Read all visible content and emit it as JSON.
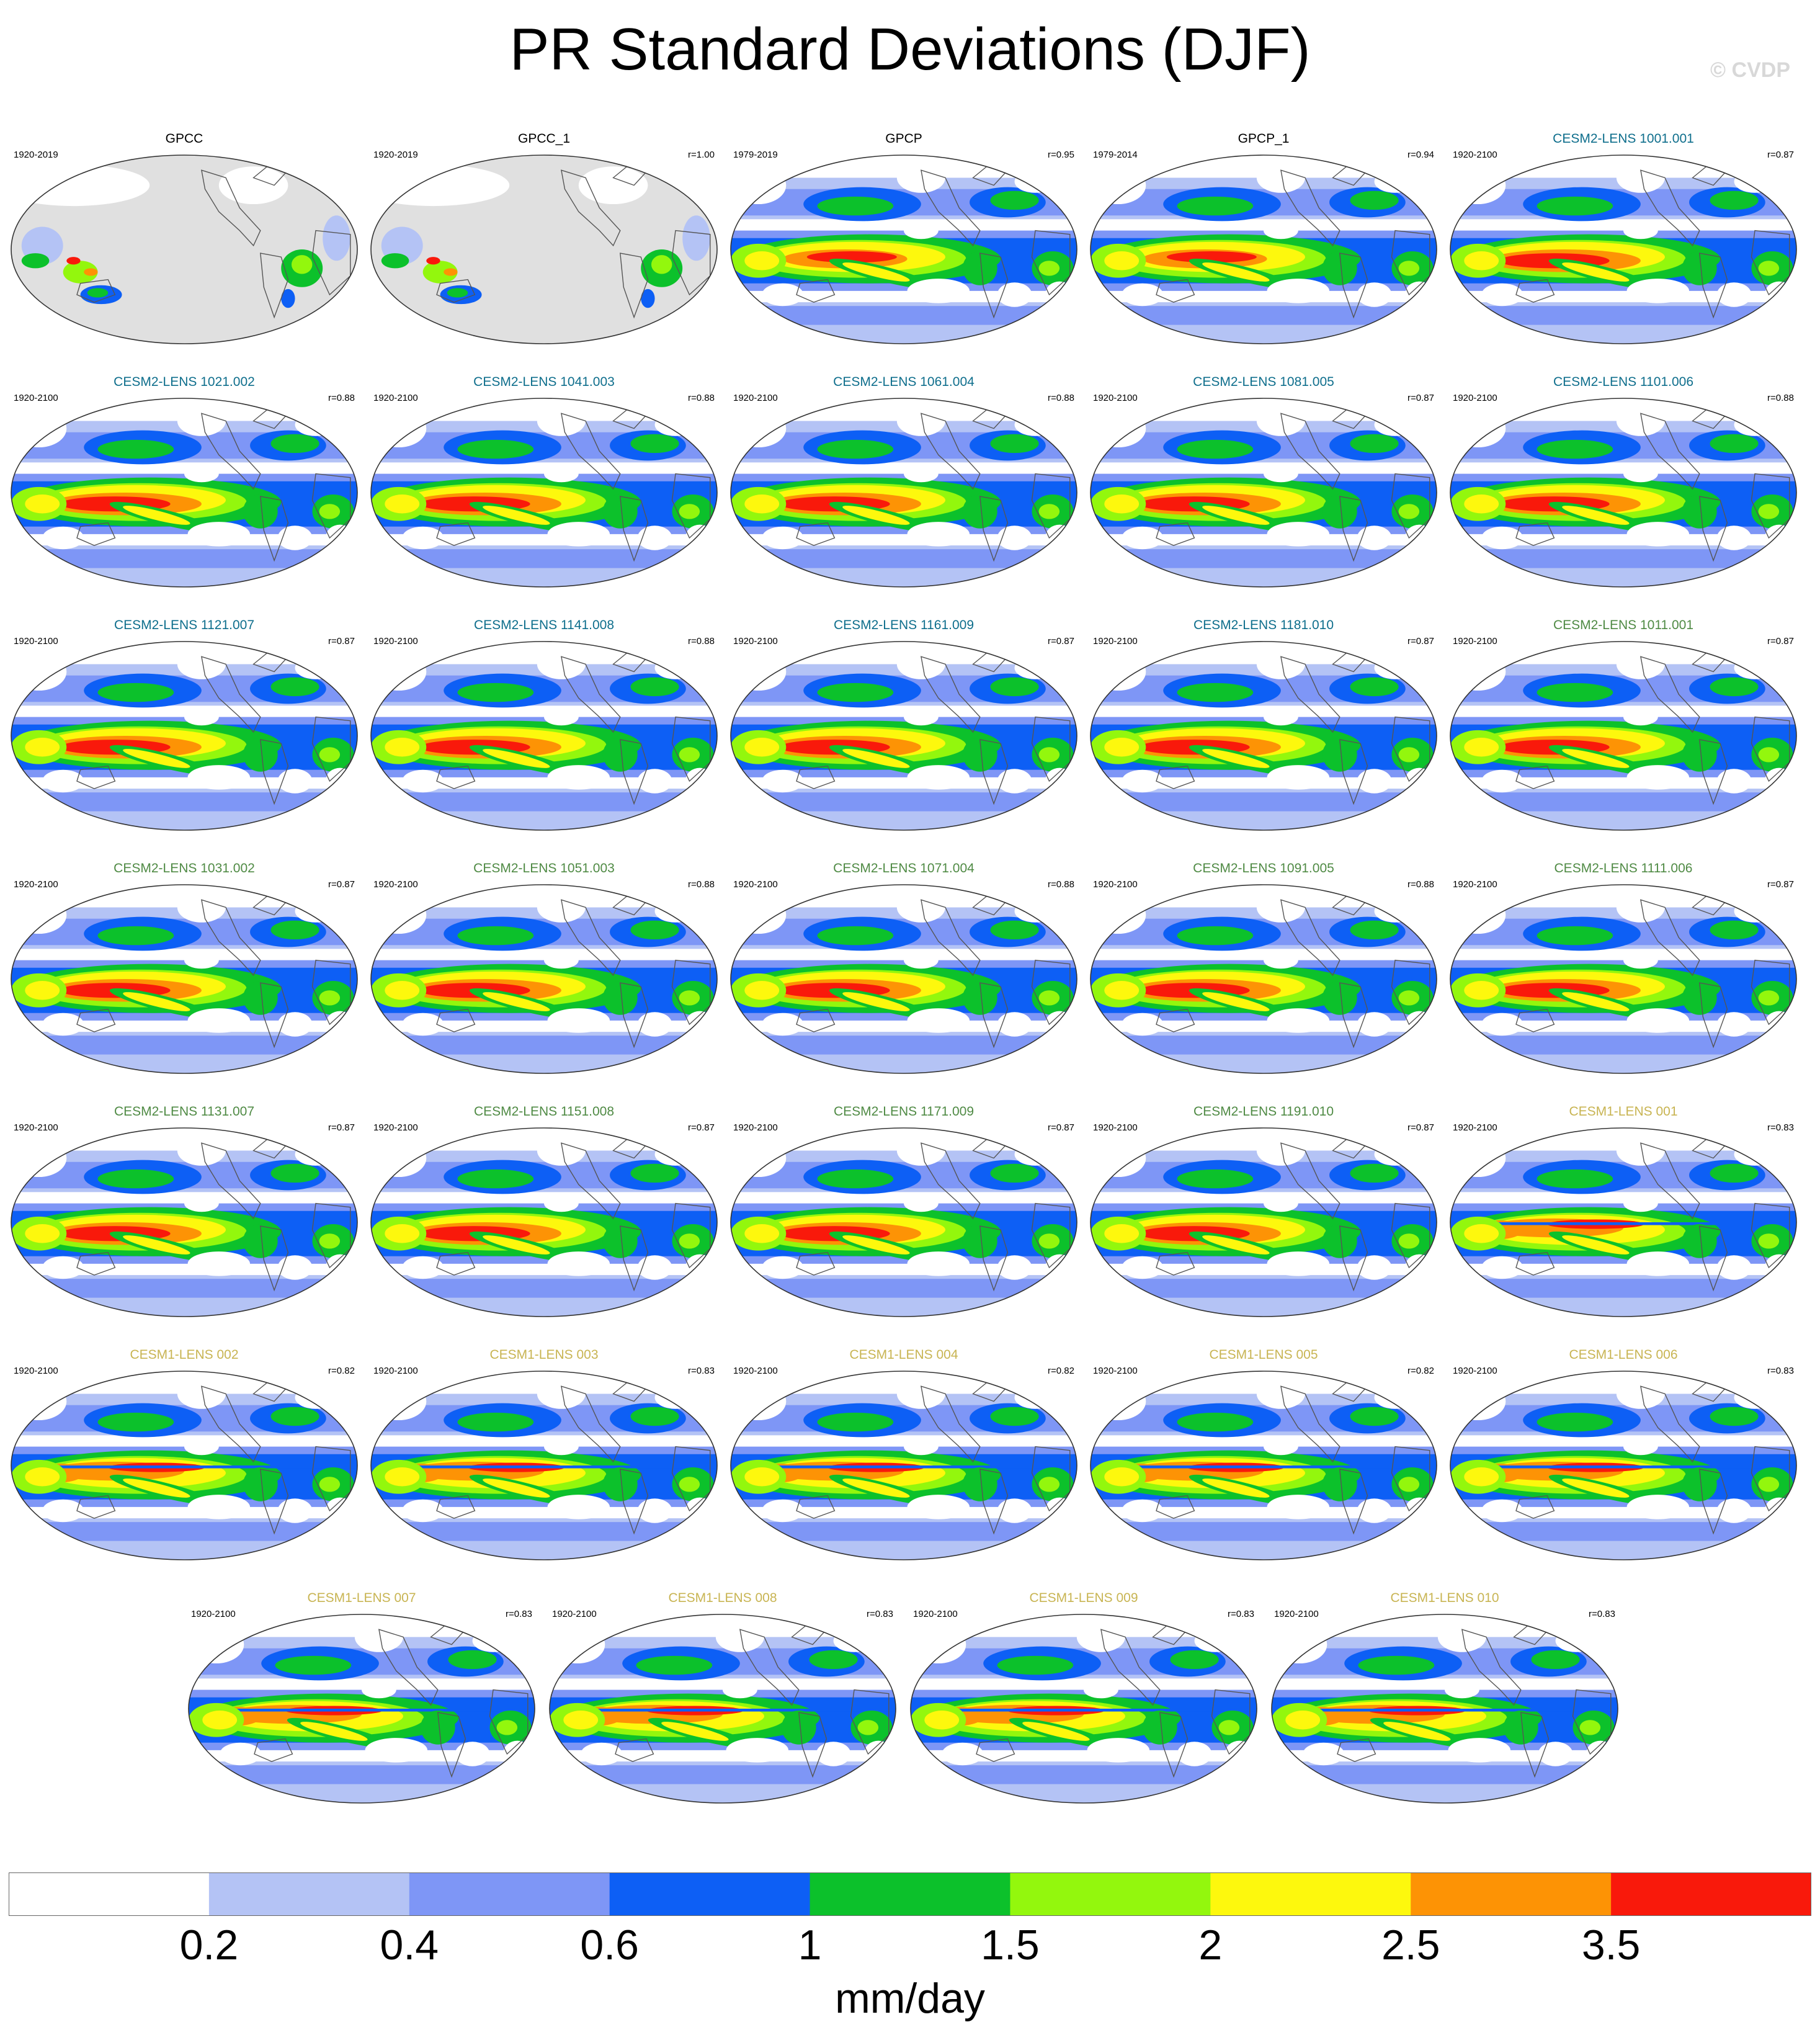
{
  "title": "PR Standard Deviations (DJF)",
  "watermark": "© CVDP",
  "colors": {
    "obs_title": "#000000",
    "cesm2_first": "#0e6e8c",
    "cesm2_second": "#4f8a44",
    "cesm1": "#c8b452",
    "land_missing": "#e0e0e0",
    "coast": "#555555"
  },
  "chart_data": {
    "type": "map-panels",
    "variable": "PR",
    "season": "DJF",
    "colorbar": {
      "units": "mm/day",
      "tick_labels": [
        "0.2",
        "0.4",
        "0.6",
        "1",
        "1.5",
        "2",
        "2.5",
        "3.5"
      ],
      "colors": [
        "#ffffff",
        "#b4c3f5",
        "#7e96f6",
        "#0d5ff5",
        "#0cc12b",
        "#93f70d",
        "#fdf80d",
        "#fd9305",
        "#f9190b"
      ]
    },
    "panels": [
      {
        "name": "GPCC",
        "years": "1920-2019",
        "r": "",
        "group": "obs",
        "kind": "land"
      },
      {
        "name": "GPCC_1",
        "years": "1920-2019",
        "r": "r=1.00",
        "group": "obs",
        "kind": "land"
      },
      {
        "name": "GPCP",
        "years": "1979-2019",
        "r": "r=0.95",
        "group": "obs",
        "kind": "global"
      },
      {
        "name": "GPCP_1",
        "years": "1979-2014",
        "r": "r=0.94",
        "group": "obs",
        "kind": "global"
      },
      {
        "name": "CESM2-LENS 1001.001",
        "years": "1920-2100",
        "r": "r=0.87",
        "group": "cesm2_first",
        "kind": "global"
      },
      {
        "name": "CESM2-LENS 1021.002",
        "years": "1920-2100",
        "r": "r=0.88",
        "group": "cesm2_first",
        "kind": "global"
      },
      {
        "name": "CESM2-LENS 1041.003",
        "years": "1920-2100",
        "r": "r=0.88",
        "group": "cesm2_first",
        "kind": "global"
      },
      {
        "name": "CESM2-LENS 1061.004",
        "years": "1920-2100",
        "r": "r=0.88",
        "group": "cesm2_first",
        "kind": "global"
      },
      {
        "name": "CESM2-LENS 1081.005",
        "years": "1920-2100",
        "r": "r=0.87",
        "group": "cesm2_first",
        "kind": "global"
      },
      {
        "name": "CESM2-LENS 1101.006",
        "years": "1920-2100",
        "r": "r=0.88",
        "group": "cesm2_first",
        "kind": "global"
      },
      {
        "name": "CESM2-LENS 1121.007",
        "years": "1920-2100",
        "r": "r=0.87",
        "group": "cesm2_first",
        "kind": "global"
      },
      {
        "name": "CESM2-LENS 1141.008",
        "years": "1920-2100",
        "r": "r=0.88",
        "group": "cesm2_first",
        "kind": "global"
      },
      {
        "name": "CESM2-LENS 1161.009",
        "years": "1920-2100",
        "r": "r=0.87",
        "group": "cesm2_first",
        "kind": "global"
      },
      {
        "name": "CESM2-LENS 1181.010",
        "years": "1920-2100",
        "r": "r=0.87",
        "group": "cesm2_first",
        "kind": "global"
      },
      {
        "name": "CESM2-LENS 1011.001",
        "years": "1920-2100",
        "r": "r=0.87",
        "group": "cesm2_second",
        "kind": "global"
      },
      {
        "name": "CESM2-LENS 1031.002",
        "years": "1920-2100",
        "r": "r=0.87",
        "group": "cesm2_second",
        "kind": "global"
      },
      {
        "name": "CESM2-LENS 1051.003",
        "years": "1920-2100",
        "r": "r=0.88",
        "group": "cesm2_second",
        "kind": "global"
      },
      {
        "name": "CESM2-LENS 1071.004",
        "years": "1920-2100",
        "r": "r=0.88",
        "group": "cesm2_second",
        "kind": "global"
      },
      {
        "name": "CESM2-LENS 1091.005",
        "years": "1920-2100",
        "r": "r=0.88",
        "group": "cesm2_second",
        "kind": "global"
      },
      {
        "name": "CESM2-LENS 1111.006",
        "years": "1920-2100",
        "r": "r=0.87",
        "group": "cesm2_second",
        "kind": "global"
      },
      {
        "name": "CESM2-LENS 1131.007",
        "years": "1920-2100",
        "r": "r=0.87",
        "group": "cesm2_second",
        "kind": "global"
      },
      {
        "name": "CESM2-LENS 1151.008",
        "years": "1920-2100",
        "r": "r=0.87",
        "group": "cesm2_second",
        "kind": "global"
      },
      {
        "name": "CESM2-LENS 1171.009",
        "years": "1920-2100",
        "r": "r=0.87",
        "group": "cesm2_second",
        "kind": "global"
      },
      {
        "name": "CESM2-LENS 1191.010",
        "years": "1920-2100",
        "r": "r=0.87",
        "group": "cesm2_second",
        "kind": "global"
      },
      {
        "name": "CESM1-LENS 001",
        "years": "1920-2100",
        "r": "r=0.83",
        "group": "cesm1",
        "kind": "cesm1"
      },
      {
        "name": "CESM1-LENS 002",
        "years": "1920-2100",
        "r": "r=0.82",
        "group": "cesm1",
        "kind": "cesm1"
      },
      {
        "name": "CESM1-LENS 003",
        "years": "1920-2100",
        "r": "r=0.83",
        "group": "cesm1",
        "kind": "cesm1"
      },
      {
        "name": "CESM1-LENS 004",
        "years": "1920-2100",
        "r": "r=0.82",
        "group": "cesm1",
        "kind": "cesm1"
      },
      {
        "name": "CESM1-LENS 005",
        "years": "1920-2100",
        "r": "r=0.82",
        "group": "cesm1",
        "kind": "cesm1"
      },
      {
        "name": "CESM1-LENS 006",
        "years": "1920-2100",
        "r": "r=0.83",
        "group": "cesm1",
        "kind": "cesm1"
      },
      {
        "name": "CESM1-LENS 007",
        "years": "1920-2100",
        "r": "r=0.83",
        "group": "cesm1",
        "kind": "cesm1"
      },
      {
        "name": "CESM1-LENS 008",
        "years": "1920-2100",
        "r": "r=0.83",
        "group": "cesm1",
        "kind": "cesm1"
      },
      {
        "name": "CESM1-LENS 009",
        "years": "1920-2100",
        "r": "r=0.83",
        "group": "cesm1",
        "kind": "cesm1"
      },
      {
        "name": "CESM1-LENS 010",
        "years": "1920-2100",
        "r": "r=0.83",
        "group": "cesm1",
        "kind": "cesm1"
      }
    ]
  }
}
